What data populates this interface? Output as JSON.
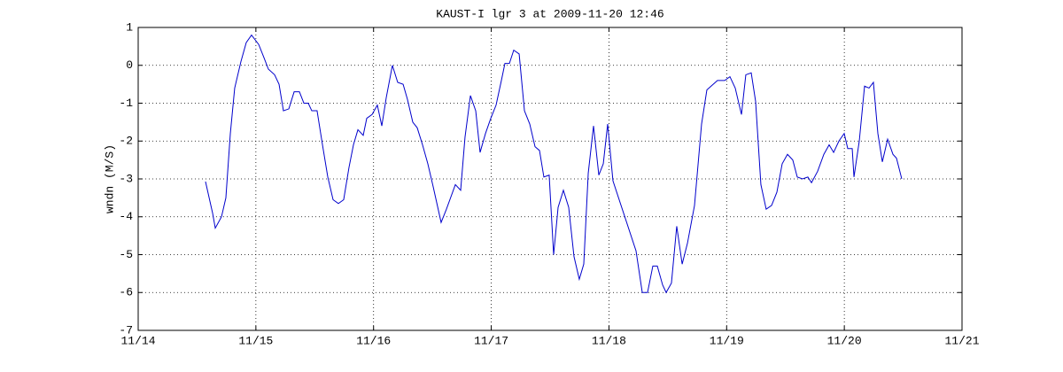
{
  "chart_data": {
    "type": "line",
    "title": "KAUST-I lgr 3 at 2009-11-20 12:46",
    "y_label": "wndn (M/S)",
    "color": "#0000cc",
    "grid": true,
    "x": [
      14.572,
      14.632,
      14.655,
      14.708,
      14.745,
      14.783,
      14.82,
      14.873,
      14.918,
      14.963,
      15.024,
      15.069,
      15.106,
      15.159,
      15.197,
      15.234,
      15.28,
      15.325,
      15.37,
      15.408,
      15.445,
      15.475,
      15.52,
      15.566,
      15.611,
      15.656,
      15.701,
      15.746,
      15.791,
      15.829,
      15.867,
      15.912,
      15.942,
      15.987,
      16.032,
      16.07,
      16.108,
      16.16,
      16.205,
      16.251,
      16.288,
      16.333,
      16.371,
      16.416,
      16.461,
      16.506,
      16.574,
      16.619,
      16.695,
      16.74,
      16.777,
      16.823,
      16.868,
      16.905,
      16.951,
      16.996,
      17.041,
      17.086,
      17.116,
      17.154,
      17.191,
      17.237,
      17.282,
      17.327,
      17.372,
      17.41,
      17.447,
      17.492,
      17.53,
      17.568,
      17.613,
      17.658,
      17.703,
      17.748,
      17.786,
      17.824,
      17.869,
      17.914,
      17.952,
      17.989,
      18.034,
      18.23,
      18.283,
      18.328,
      18.373,
      18.411,
      18.456,
      18.486,
      18.531,
      18.576,
      18.622,
      18.667,
      18.727,
      18.787,
      18.832,
      18.922,
      18.983,
      19.028,
      19.073,
      19.126,
      19.163,
      19.209,
      19.246,
      19.291,
      19.336,
      19.382,
      19.427,
      19.472,
      19.517,
      19.562,
      19.6,
      19.645,
      19.69,
      19.721,
      19.773,
      19.826,
      19.871,
      19.909,
      19.954,
      19.999,
      20.029,
      20.067,
      20.082,
      20.127,
      20.172,
      20.21,
      20.247,
      20.285,
      20.323,
      20.368,
      20.413,
      20.443,
      20.488
    ],
    "values": [
      -3.07,
      -3.9,
      -4.3,
      -4.0,
      -3.5,
      -1.8,
      -0.6,
      0.1,
      0.6,
      0.8,
      0.55,
      0.2,
      -0.1,
      -0.25,
      -0.5,
      -1.2,
      -1.15,
      -0.7,
      -0.7,
      -1.0,
      -1.0,
      -1.2,
      -1.2,
      -2.1,
      -2.95,
      -3.55,
      -3.65,
      -3.55,
      -2.7,
      -2.1,
      -1.7,
      -1.85,
      -1.4,
      -1.3,
      -1.05,
      -1.6,
      -0.85,
      0.0,
      -0.45,
      -0.5,
      -0.9,
      -1.5,
      -1.65,
      -2.1,
      -2.6,
      -3.2,
      -4.15,
      -3.8,
      -3.15,
      -3.3,
      -1.9,
      -0.8,
      -1.2,
      -2.3,
      -1.8,
      -1.4,
      -1.05,
      -0.4,
      0.05,
      0.05,
      0.4,
      0.3,
      -1.2,
      -1.55,
      -2.15,
      -2.25,
      -2.95,
      -2.9,
      -5.0,
      -3.75,
      -3.3,
      -3.75,
      -5.05,
      -5.65,
      -5.25,
      -2.85,
      -1.6,
      -2.9,
      -2.6,
      -1.55,
      -3.05,
      -4.9,
      -6.0,
      -6.0,
      -5.3,
      -5.3,
      -5.8,
      -6.0,
      -5.75,
      -4.25,
      -5.25,
      -4.7,
      -3.7,
      -1.55,
      -0.65,
      -0.4,
      -0.4,
      -0.3,
      -0.6,
      -1.3,
      -0.25,
      -0.2,
      -0.95,
      -3.15,
      -3.8,
      -3.7,
      -3.35,
      -2.6,
      -2.35,
      -2.5,
      -2.95,
      -3.0,
      -2.95,
      -3.1,
      -2.8,
      -2.35,
      -2.1,
      -2.3,
      -2.0,
      -1.8,
      -2.2,
      -2.2,
      -2.95,
      -2.0,
      -0.55,
      -0.6,
      -0.45,
      -1.8,
      -2.55,
      -1.95,
      -2.35,
      -2.45,
      -3.0
    ],
    "xlim": [
      14,
      21
    ],
    "xticks": [
      {
        "value": 14,
        "label": "11/14"
      },
      {
        "value": 15,
        "label": "11/15"
      },
      {
        "value": 16,
        "label": "11/16"
      },
      {
        "value": 17,
        "label": "11/17"
      },
      {
        "value": 18,
        "label": "11/18"
      },
      {
        "value": 19,
        "label": "11/19"
      },
      {
        "value": 20,
        "label": "11/20"
      },
      {
        "value": 21,
        "label": "11/21"
      }
    ],
    "ylim": [
      -7,
      1
    ],
    "yticks": [
      -7,
      -6,
      -5,
      -4,
      -3,
      -2,
      -1,
      0,
      1
    ]
  }
}
